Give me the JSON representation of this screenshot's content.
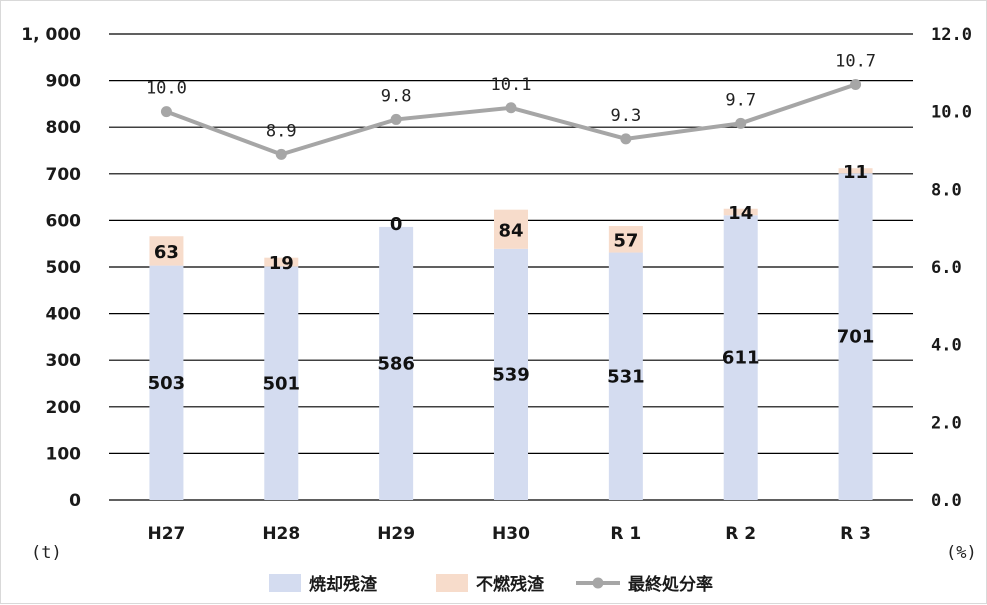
{
  "chart_data": {
    "type": "bar",
    "categories": [
      "H27",
      "H28",
      "H29",
      "H30",
      "R1",
      "R2",
      "R3"
    ],
    "category_display": [
      "H27",
      "H28",
      "H29",
      "H30",
      "R 1",
      "R 2",
      "R 3"
    ],
    "series": [
      {
        "name": "焼却残渣",
        "type": "bar",
        "stacked": true,
        "axis": "left",
        "values": [
          503,
          501,
          586,
          539,
          531,
          611,
          701
        ]
      },
      {
        "name": "不燃残渣",
        "type": "bar",
        "stacked": true,
        "axis": "left",
        "values": [
          63,
          19,
          0,
          84,
          57,
          14,
          11
        ]
      },
      {
        "name": "最終処分率",
        "type": "line",
        "axis": "right",
        "values": [
          10.0,
          8.9,
          9.8,
          10.1,
          9.3,
          9.7,
          10.7
        ]
      }
    ],
    "y_left": {
      "ylim": [
        0,
        1000
      ],
      "ticks": [
        0,
        100,
        200,
        300,
        400,
        500,
        600,
        700,
        800,
        900,
        1000
      ],
      "tick_labels": [
        "0",
        "100",
        "200",
        "300",
        "400",
        "500",
        "600",
        "700",
        "800",
        "900",
        "1, 000"
      ],
      "unit": "(t)"
    },
    "y_right": {
      "ylim": [
        0,
        12
      ],
      "ticks": [
        0,
        2,
        4,
        6,
        8,
        10,
        12
      ],
      "tick_labels": [
        "0.0",
        "2.0",
        "4.0",
        "6.0",
        "8.0",
        "10.0",
        "12.0"
      ],
      "unit": "(%)"
    },
    "line_labels": [
      "10.0",
      "8.9",
      "9.8",
      "10.1",
      "9.3",
      "9.7",
      "10.7"
    ],
    "grid": true,
    "legend_position": "bottom",
    "colors": {
      "焼却残渣": "#d4dcf0",
      "不燃残渣": "#f7dccb",
      "最終処分率": "#a6a6a6",
      "grid": "#000000"
    }
  }
}
